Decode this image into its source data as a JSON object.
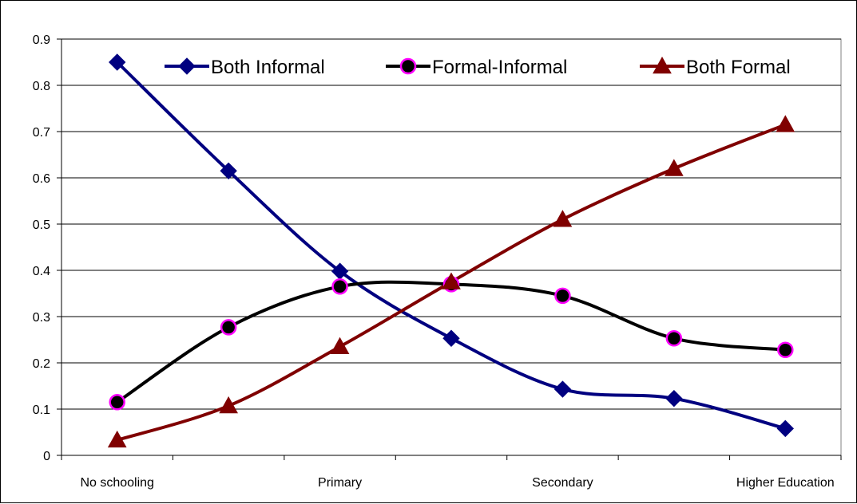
{
  "chart_data": {
    "type": "line",
    "title": "",
    "xlabel": "",
    "ylabel": "",
    "ylim": [
      0,
      0.9
    ],
    "y_ticks": [
      "0",
      "0.1",
      "0.2",
      "0.3",
      "0.4",
      "0.5",
      "0.6",
      "0.7",
      "0.8",
      "0.9"
    ],
    "x_tick_labels": [
      "No schooling",
      "Primary",
      "Secondary",
      "Higher Education"
    ],
    "grid": "horizontal",
    "legend_position": "top",
    "marker_x": [
      "No schooling",
      "",
      "Primary",
      "",
      "Secondary",
      "",
      "Higher Education"
    ],
    "series": [
      {
        "name": "Both Informal",
        "color": "#000080",
        "marker": "diamond",
        "x": [
          0,
          1,
          2,
          3,
          4,
          5,
          6
        ],
        "values": [
          0.85,
          0.615,
          0.398,
          0.253,
          0.143,
          0.123,
          0.058
        ]
      },
      {
        "name": "Formal-Informal",
        "color": "#000000",
        "marker_stroke": "#ff00ff",
        "marker": "circle",
        "x": [
          0,
          1,
          2,
          3,
          4,
          5,
          6
        ],
        "values": [
          0.115,
          0.277,
          0.365,
          0.37,
          0.345,
          0.253,
          0.228
        ]
      },
      {
        "name": "Both Formal",
        "color": "#800000",
        "marker": "triangle",
        "x": [
          0,
          1,
          2,
          3,
          4,
          5,
          6
        ],
        "values": [
          0.033,
          0.107,
          0.235,
          0.375,
          0.51,
          0.62,
          0.715
        ]
      }
    ]
  }
}
